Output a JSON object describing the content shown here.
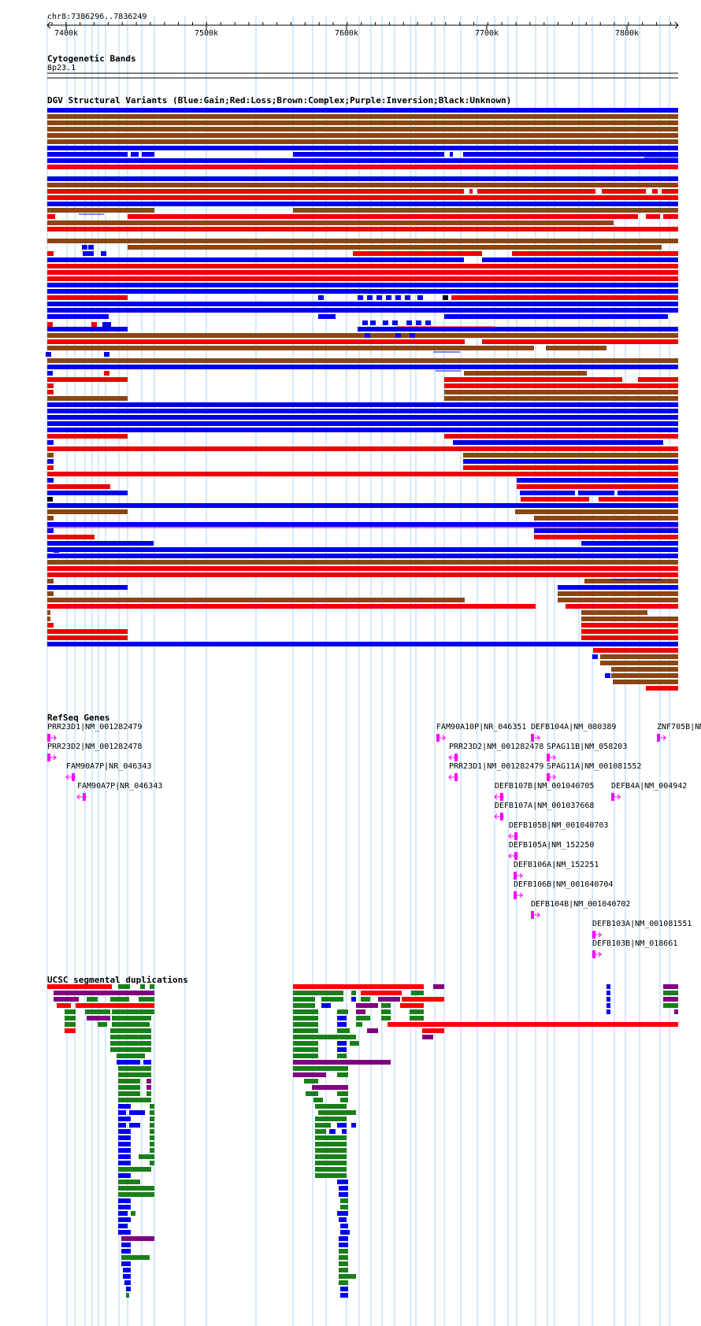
{
  "genome": {
    "position": "chr8:7386296..7836249",
    "ruler_ticks": [
      "7400k",
      "7500k",
      "7600k",
      "7700k",
      "7800k"
    ]
  },
  "tracks": {
    "cytoband": {
      "title": "Cytogenetic Bands",
      "band": "8p23.1"
    },
    "dgv": {
      "title": "DGV Structural Variants (Blue:Gain;Red:Loss;Brown:Complex;Purple:Inversion;Black:Unknown)",
      "colors": {
        "gain": "#0000ee",
        "loss": "#ee0000",
        "complex": "#8b4513",
        "inversion": "#800080",
        "unknown": "#000000"
      }
    },
    "refseq": {
      "title": "RefSeq Genes",
      "color": "#ff00ff",
      "genes": [
        "PRR23D1|NM_001282479",
        "PRR23D2|NM_001282478",
        "FAM90A7P|NR_046343",
        "FAM90A7P|NR_046343",
        "FAM90A10P|NR_046351",
        "PRR23D2|NM_001282478",
        "PRR23D1|NM_001282479",
        "DEFB104A|NM_080389",
        "SPAG11B|NM_058203",
        "SPAG11A|NM_001081552",
        "DEFB107B|NM_001040705",
        "DEFB107A|NM_001037668",
        "DEFB105B|NM_001040703",
        "DEFB105A|NM_152250",
        "DEFB106A|NM_152251",
        "DEFB106B|NM_001040704",
        "DEFB104B|NM_001040702",
        "DEFB103A|NM_001081551",
        "DEFB103B|NM_018661",
        "DEFB4A|NM_004942",
        "ZNF705B|NM"
      ]
    },
    "segdups": {
      "title": "UCSC segmental duplications",
      "colors": {
        "red": "#ff0000",
        "green": "#1a7f1a",
        "blue": "#0000ee",
        "purple": "#800080"
      }
    }
  }
}
